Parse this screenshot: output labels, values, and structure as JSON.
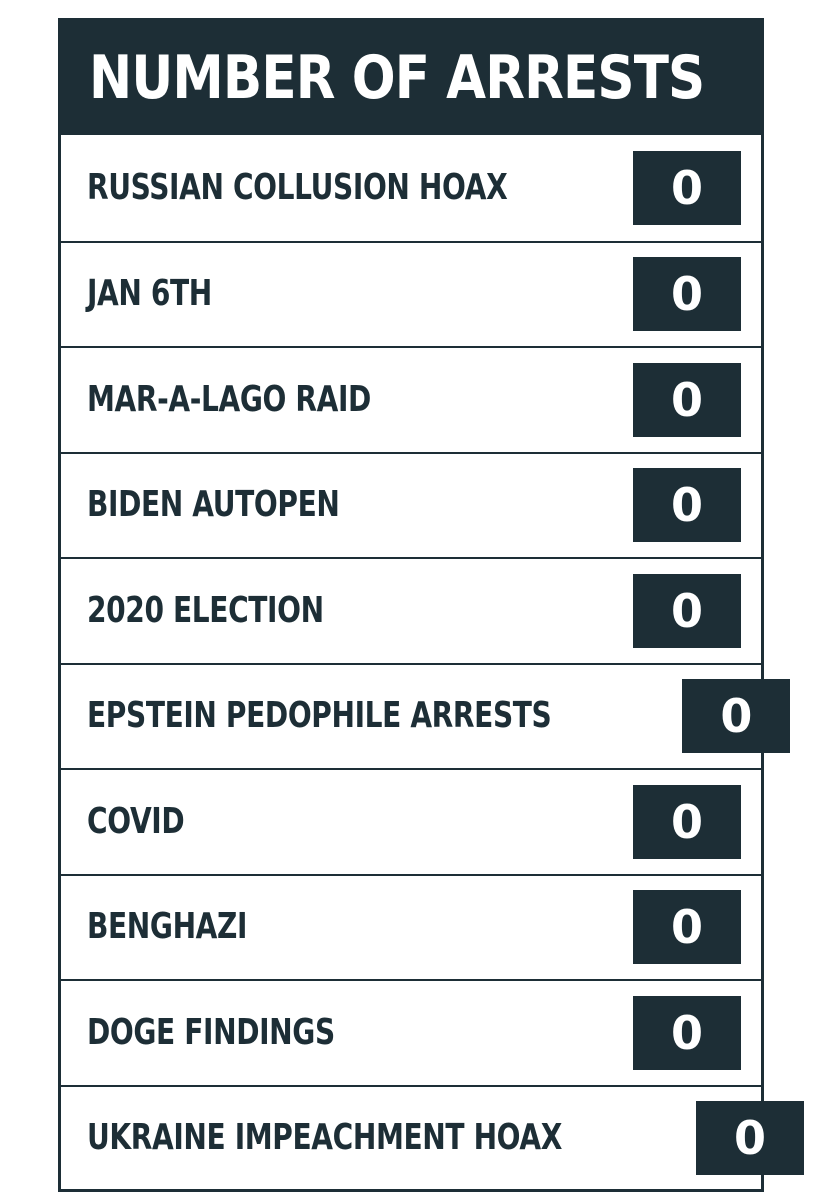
{
  "title": "NUMBER OF ARRESTS",
  "colors": {
    "dark": "#1d2e36",
    "light": "#ffffff"
  },
  "rows": [
    {
      "label": "RUSSIAN COLLUSION HOAX",
      "count": "0"
    },
    {
      "label": "JAN 6TH",
      "count": "0"
    },
    {
      "label": "MAR-A-LAGO RAID",
      "count": "0"
    },
    {
      "label": "BIDEN AUTOPEN",
      "count": "0"
    },
    {
      "label": "2020 ELECTION",
      "count": "0"
    },
    {
      "label": "EPSTEIN PEDOPHILE ARRESTS",
      "count": "0"
    },
    {
      "label": "COVID",
      "count": "0"
    },
    {
      "label": "BENGHAZI",
      "count": "0"
    },
    {
      "label": "DOGE FINDINGS",
      "count": "0"
    },
    {
      "label": "UKRAINE IMPEACHMENT HOAX",
      "count": "0"
    }
  ]
}
